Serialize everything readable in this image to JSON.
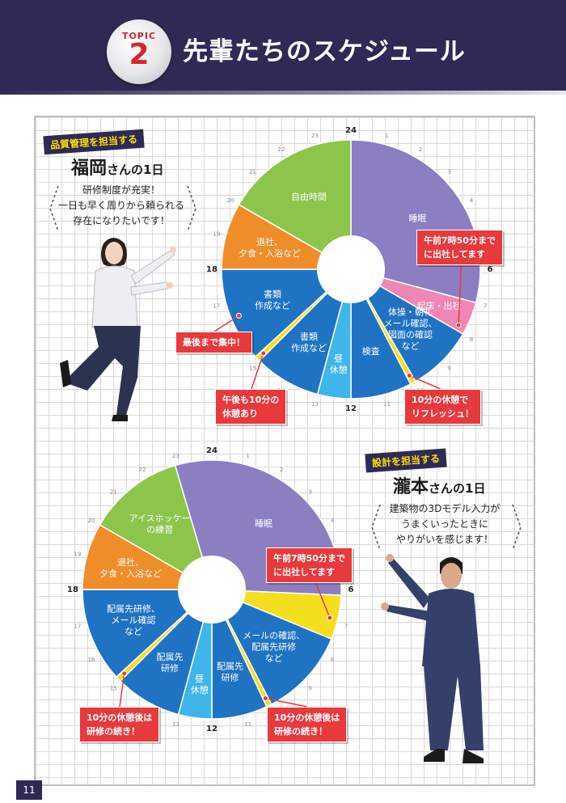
{
  "header": {
    "topic_label": "TOPIC",
    "topic_number": "2",
    "title": "先輩たちのスケジュール",
    "background_color": "#2e2a55"
  },
  "page_number": "11",
  "people": [
    {
      "role_tag": "品質管理を担当する",
      "name": "福岡",
      "name_suffix": "さんの1日",
      "comment": [
        "研修制度が充実！",
        "一日も早く周りから頼られる",
        "存在になりたいです！"
      ],
      "chart": {
        "hour_labels": [
          "24",
          "1",
          "2",
          "3",
          "4",
          "5",
          "6",
          "7",
          "8",
          "9",
          "10",
          "11",
          "12",
          "13",
          "14",
          "15",
          "16",
          "17",
          "18",
          "19",
          "20",
          "21",
          "22",
          "23"
        ],
        "segments": [
          {
            "label": [
              "睡眠"
            ],
            "start": 0,
            "end": 7,
            "color": "#8b7fc2"
          },
          {
            "label": [
              "起床・出社"
            ],
            "start": 7,
            "end": 8,
            "color": "#ee87b5"
          },
          {
            "label": [
              "体操・朝礼",
              "メール確認、",
              "図面の確認",
              "など"
            ],
            "start": 8,
            "end": 10,
            "color": "#1f73c2"
          },
          {
            "label": [],
            "start": 10,
            "end": 10.17,
            "color": "#f3df1e"
          },
          {
            "label": [
              "検査"
            ],
            "start": 10.17,
            "end": 12,
            "color": "#1f73c2"
          },
          {
            "label": [
              "昼",
              "休憩"
            ],
            "start": 12,
            "end": 13,
            "color": "#3fb5ea"
          },
          {
            "label": [
              "書類",
              "作成など"
            ],
            "start": 13,
            "end": 15,
            "color": "#1f73c2"
          },
          {
            "label": [],
            "start": 15,
            "end": 15.17,
            "color": "#f3df1e"
          },
          {
            "label": [
              "書類",
              "作成など"
            ],
            "start": 15.17,
            "end": 18,
            "color": "#1f73c2"
          },
          {
            "label": [
              "退社、",
              "夕食・入浴など"
            ],
            "start": 18,
            "end": 20,
            "color": "#f08d2b"
          },
          {
            "label": [
              "自由時間"
            ],
            "start": 20,
            "end": 24,
            "color": "#8dc54c"
          }
        ],
        "callouts": [
          {
            "text": [
              "午前7時50分まで",
              "に出社してます"
            ],
            "at_hour": 7.83
          },
          {
            "text": [
              "最後まで集中！"
            ],
            "at_hour": 16.5
          },
          {
            "text": [
              "午後も10分の",
              "休憩あり"
            ],
            "at_hour": 15.08
          },
          {
            "text": [
              "10分の休憩で",
              "リフレッシュ！"
            ],
            "at_hour": 10.08
          }
        ]
      }
    },
    {
      "role_tag": "設計を担当する",
      "name": "瀧本",
      "name_suffix": "さんの1日",
      "comment": [
        "建築物の3Dモデル入力が",
        "うまくいったときに",
        "やりがいを感じます！"
      ],
      "chart": {
        "hour_labels": [
          "24",
          "1",
          "2",
          "3",
          "4",
          "5",
          "6",
          "7",
          "8",
          "9",
          "10",
          "11",
          "12",
          "13",
          "14",
          "15",
          "16",
          "17",
          "18",
          "19",
          "20",
          "21",
          "22",
          "23"
        ],
        "segments": [
          {
            "label": [
              "睡眠"
            ],
            "start": -1.1,
            "end": 6.17,
            "color": "#8b7fc2"
          },
          {
            "label": [],
            "start": 6.17,
            "end": 7.5,
            "color": "#f3df1e"
          },
          {
            "label": [
              "メールの確認、",
              "配属先研修",
              "など"
            ],
            "start": 7.5,
            "end": 10.17,
            "color": "#1f73c2"
          },
          {
            "label": [],
            "start": 10.17,
            "end": 10.33,
            "color": "#f3df1e"
          },
          {
            "label": [
              "配属先",
              "研修"
            ],
            "start": 10.33,
            "end": 12,
            "color": "#1f73c2"
          },
          {
            "label": [
              "昼",
              "休憩"
            ],
            "start": 12,
            "end": 13,
            "color": "#3fb5ea"
          },
          {
            "label": [
              "配属先",
              "研修"
            ],
            "start": 13,
            "end": 15,
            "color": "#1f73c2"
          },
          {
            "label": [],
            "start": 15,
            "end": 15.17,
            "color": "#f3df1e"
          },
          {
            "label": [
              "配属先研修、",
              "メール確認",
              "など"
            ],
            "start": 15.17,
            "end": 18,
            "color": "#1f73c2"
          },
          {
            "label": [
              "退社、",
              "夕食・入浴など"
            ],
            "start": 18,
            "end": 20,
            "color": "#f08d2b"
          },
          {
            "label": [
              "アイスホッケー",
              "の練習"
            ],
            "start": 20,
            "end": 22.9,
            "color": "#8dc54c"
          }
        ],
        "callouts": [
          {
            "text": [
              "午前7時50分まで",
              "に出社してます"
            ],
            "at_hour": 6.9
          },
          {
            "text": [
              "10分の休憩後は",
              "研修の続き！"
            ],
            "at_hour": 15.08
          },
          {
            "text": [
              "10分の休憩後は",
              "研修の続き！"
            ],
            "at_hour": 10.25
          }
        ]
      }
    }
  ]
}
